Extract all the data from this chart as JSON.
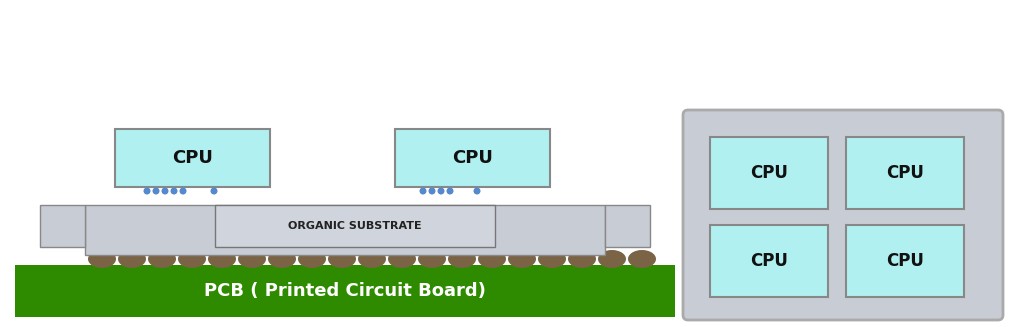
{
  "bg_color": "#ffffff",
  "pcb_color": "#2e8b00",
  "pcb_text_color": "#ffffff",
  "pcb_label": "PCB ( Printed Circuit Board)",
  "substrate_color": "#c8ccd4",
  "substrate_label": "ORGANIC SUBSTRATE",
  "substrate_label_color": "#222222",
  "cpu_color": "#b0f0f0",
  "cpu_border_color": "#888888",
  "cpu_label": "CPU",
  "bump_color": "#7a6445",
  "connector_color": "#5588cc",
  "inset_bg_color": "#c8ccd4",
  "inset_border_color": "#aaaaaa"
}
